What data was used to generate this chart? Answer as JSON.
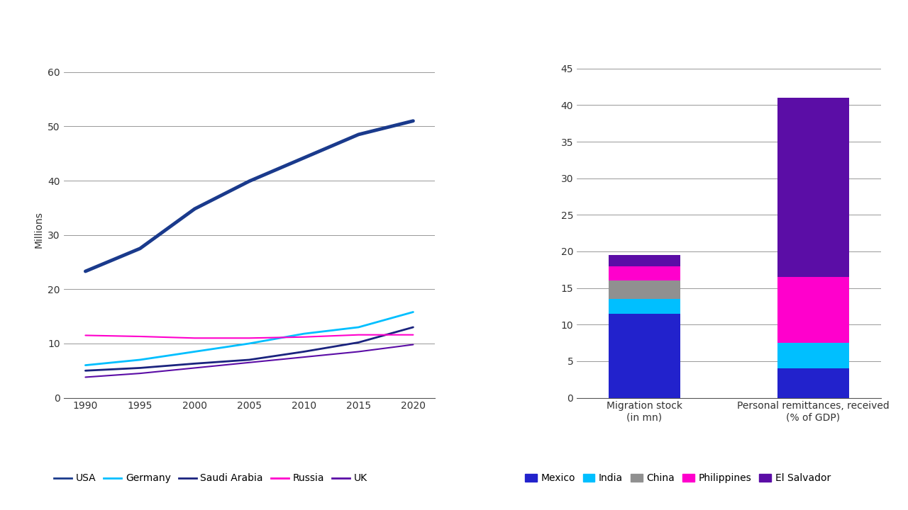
{
  "line_years": [
    1990,
    1995,
    2000,
    2005,
    2010,
    2015,
    2020
  ],
  "line_data": {
    "USA": [
      23.3,
      27.5,
      34.8,
      39.9,
      44.2,
      48.5,
      51.0
    ],
    "Germany": [
      6.0,
      7.0,
      8.5,
      10.0,
      11.8,
      13.0,
      15.8
    ],
    "Saudi Arabia": [
      5.0,
      5.5,
      6.3,
      7.0,
      8.5,
      10.2,
      13.0
    ],
    "Russia": [
      11.5,
      11.3,
      11.0,
      11.0,
      11.2,
      11.6,
      11.6
    ],
    "UK": [
      3.8,
      4.5,
      5.5,
      6.5,
      7.5,
      8.5,
      9.8
    ]
  },
  "line_colors": {
    "USA": "#1a3a8c",
    "Germany": "#00bfff",
    "Saudi Arabia": "#1a237e",
    "Russia": "#ff00cc",
    "UK": "#5b0da6"
  },
  "line_widths": {
    "USA": 3.5,
    "Germany": 2.0,
    "Saudi Arabia": 2.0,
    "Russia": 1.5,
    "UK": 1.5
  },
  "left_ylim": [
    0,
    62
  ],
  "left_yticks": [
    0,
    10,
    20,
    30,
    40,
    50,
    60
  ],
  "left_ylabel": "Millions",
  "left_xticks": [
    1990,
    1995,
    2000,
    2005,
    2010,
    2015,
    2020
  ],
  "bar_categories": [
    "Migration stock\n(in mn)",
    "Personal remittances, received\n(% of GDP)"
  ],
  "bar_data": {
    "Mexico": [
      11.5,
      4.0
    ],
    "India": [
      2.0,
      3.5
    ],
    "China": [
      2.5,
      0.0
    ],
    "Philippines": [
      2.0,
      9.0
    ],
    "El Salvador": [
      1.5,
      24.5
    ]
  },
  "bar_colors": {
    "Mexico": "#2222cc",
    "India": "#00bfff",
    "China": "#909090",
    "Philippines": "#ff00cc",
    "El Salvador": "#5b0da6"
  },
  "right_ylim": [
    0,
    46
  ],
  "right_yticks": [
    0,
    5,
    10,
    15,
    20,
    25,
    30,
    35,
    40,
    45
  ],
  "background_color": "#ffffff",
  "grid_color": "#888888"
}
